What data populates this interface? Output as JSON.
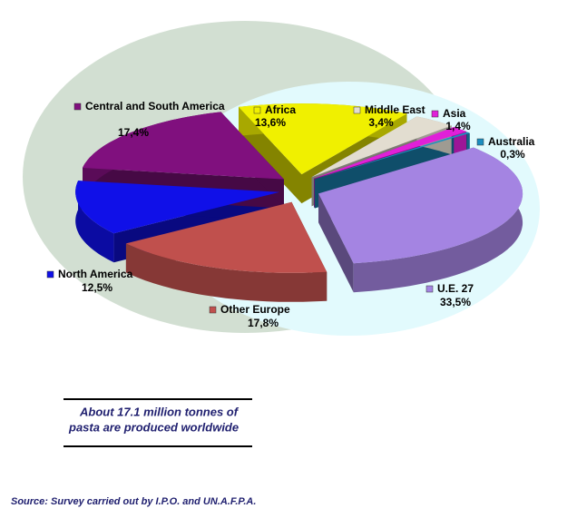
{
  "chart_data": {
    "type": "pie",
    "categories": [
      "Africa",
      "Middle East",
      "Asia",
      "Australia",
      "U.E. 27",
      "Other Europe",
      "North America",
      "Central and South America"
    ],
    "values": [
      13.6,
      3.4,
      1.4,
      0.3,
      33.5,
      17.8,
      12.5,
      17.4
    ],
    "value_labels": [
      "13,6%",
      "3,4%",
      "1,4%",
      "0,3%",
      "33,5%",
      "17,8%",
      "12,5%",
      "17,4%"
    ],
    "colors": [
      "#f0f000",
      "#e2ddd0",
      "#e020d8",
      "#1c8ec0",
      "#a484e2",
      "#c0504d",
      "#1010e8",
      "#80107e"
    ],
    "note": [
      "About 17.1 million tonnes of",
      "pasta are produced worldwide"
    ],
    "source": "Source: Survey carried out by I.P.O. and UN.A.F.P.A."
  }
}
